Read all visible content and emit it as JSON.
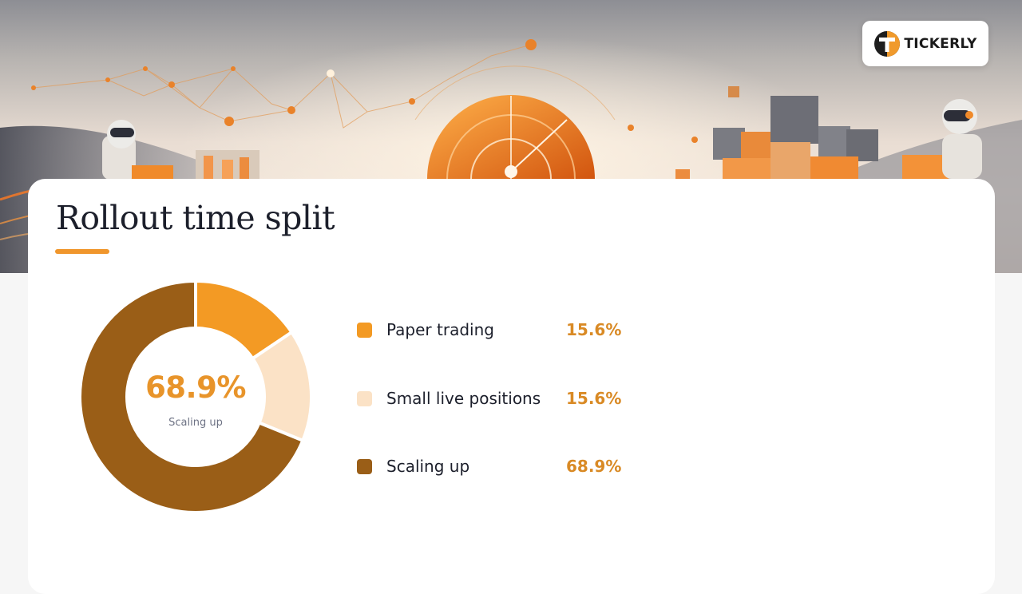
{
  "brand": {
    "name": "TICKERLY",
    "logo_letter": "T"
  },
  "chart_data": {
    "type": "pie",
    "style": "donut",
    "title": "Rollout time split",
    "categories": [
      "Paper trading",
      "Small live positions",
      "Scaling up"
    ],
    "values": [
      15.6,
      15.6,
      68.9
    ],
    "value_labels": [
      "15.6%",
      "15.6%",
      "68.9%"
    ],
    "colors": [
      "#f39a24",
      "#fbe2c6",
      "#9a5e17"
    ],
    "center": {
      "value": "68.9%",
      "label": "Scaling up"
    },
    "legend_position": "right"
  },
  "colors": {
    "accent": "#f0962c",
    "value_text": "#d98a25"
  }
}
